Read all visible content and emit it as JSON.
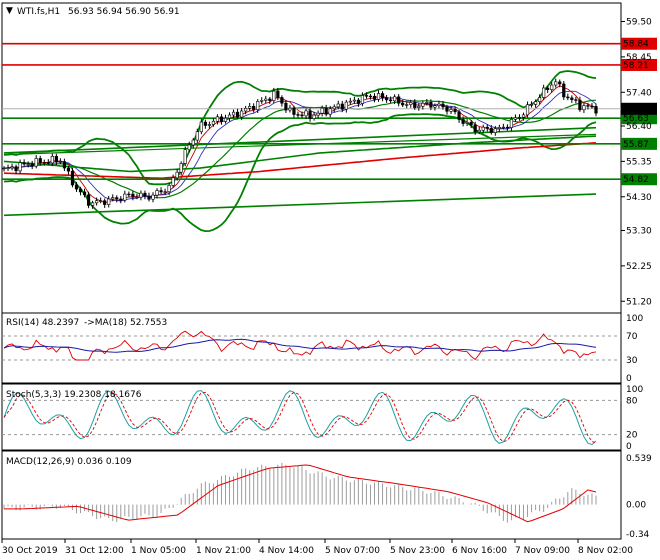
{
  "main": {
    "symbol_label": "WTI.fs,H1",
    "ohlc_text": "56.93 56.94 56.90 56.91",
    "price_ticks": [
      "59.50",
      "58.45",
      "57.40",
      "56.40",
      "55.35",
      "54.30",
      "53.30",
      "52.25",
      "51.20"
    ],
    "current_price": "56.91",
    "levels": [
      {
        "label": "58.84",
        "value": 58.84,
        "color": "#e00000"
      },
      {
        "label": "58.21",
        "value": 58.21,
        "color": "#e00000"
      },
      {
        "label": "56.63",
        "value": 56.63,
        "color": "#008000"
      },
      {
        "label": "55.87",
        "value": 55.87,
        "color": "#008000"
      },
      {
        "label": "54.82",
        "value": 54.82,
        "color": "#008000"
      }
    ]
  },
  "rsi": {
    "label": "RSI(14) 48.2397",
    "ma_label": "->MA(18) 52.7553",
    "ticks": [
      "100",
      "70",
      "30",
      "0"
    ]
  },
  "stoch": {
    "label": "Stoch(5,3,3) 19.2308 18.1676",
    "ticks": [
      "100",
      "80",
      "20",
      "0"
    ]
  },
  "macd": {
    "label": "MACD(12,26,9) 0.036 0.109",
    "ticks": [
      "0.539",
      "0.00",
      "-0.34"
    ]
  },
  "time_labels": [
    "30 Oct 2019",
    "31 Oct 12:00",
    "1 Nov 05:00",
    "1 Nov 21:00",
    "4 Nov 14:00",
    "5 Nov 07:00",
    "5 Nov 23:00",
    "6 Nov 16:00",
    "7 Nov 09:00",
    "8 Nov 02:00"
  ],
  "chart_data": [
    {
      "type": "candlestick",
      "title": "WTI.fs,H1",
      "ylim": [
        51.0,
        59.9
      ],
      "x": [
        "30 Oct 2019",
        "31 Oct 12:00",
        "1 Nov 05:00",
        "1 Nov 21:00",
        "4 Nov 14:00",
        "5 Nov 07:00",
        "5 Nov 23:00",
        "6 Nov 16:00",
        "7 Nov 09:00",
        "8 Nov 02:00"
      ],
      "close": [
        55.25,
        54.0,
        54.25,
        56.8,
        57.15,
        57.2,
        56.95,
        56.45,
        57.9,
        56.91
      ],
      "last": {
        "open": 56.93,
        "high": 56.94,
        "low": 56.9,
        "close": 56.91
      },
      "horizontal_levels": [
        58.84,
        58.21,
        56.63,
        55.87,
        54.82
      ]
    },
    {
      "type": "line",
      "title": "RSI(14)",
      "ylim": [
        0,
        100
      ],
      "values": {
        "rsi": 48.2397,
        "ma18": 52.7553
      },
      "levels": [
        70,
        30
      ]
    },
    {
      "type": "line",
      "title": "Stoch(5,3,3)",
      "ylim": [
        0,
        100
      ],
      "values": {
        "k": 19.2308,
        "d": 18.1676
      },
      "levels": [
        80,
        20
      ]
    },
    {
      "type": "bar",
      "title": "MACD(12,26,9)",
      "ylim": [
        -0.34,
        0.539
      ],
      "values": {
        "macd": 0.036,
        "signal": 0.109
      }
    }
  ]
}
